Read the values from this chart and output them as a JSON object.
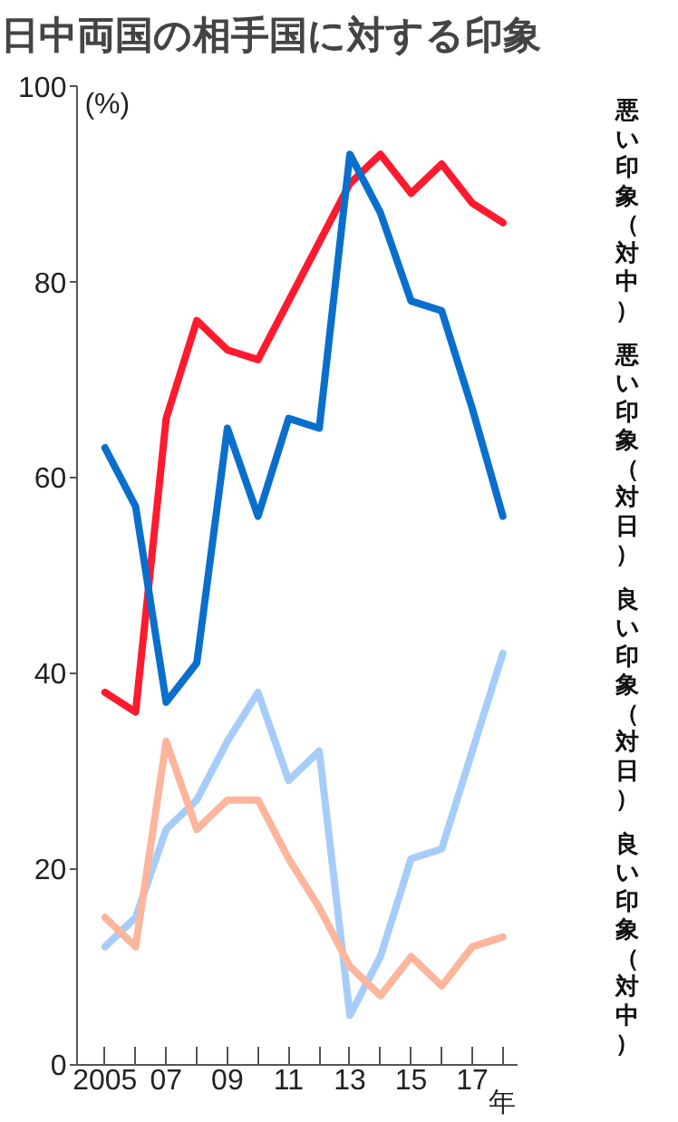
{
  "chart_data": {
    "type": "line",
    "title": "日中両国の相手国に対する印象",
    "ylabel": "(%)",
    "xlabel": "年",
    "x": [
      2005,
      2006,
      2007,
      2008,
      2009,
      2010,
      2011,
      2012,
      2013,
      2014,
      2015,
      2016,
      2017,
      2018
    ],
    "series": [
      {
        "name": "悪い印象（対中）",
        "color": "#ff1a2e",
        "values": [
          38,
          36,
          66,
          76,
          73,
          72,
          78,
          84,
          90,
          93,
          89,
          92,
          88,
          86
        ]
      },
      {
        "name": "悪い印象（対日）",
        "color": "#0a6fcc",
        "values": [
          63,
          57,
          37,
          41,
          65,
          56,
          66,
          65,
          93,
          87,
          78,
          77,
          67,
          56
        ]
      },
      {
        "name": "良い印象（対日）",
        "color": "#a6cdfa",
        "values": [
          12,
          15,
          24,
          27,
          33,
          38,
          29,
          32,
          5,
          11,
          21,
          22,
          32,
          42
        ]
      },
      {
        "name": "良い印象（対中）",
        "color": "#fdb59c",
        "values": [
          15,
          12,
          33,
          24,
          27,
          27,
          21,
          16,
          10,
          7,
          11,
          8,
          12,
          13
        ]
      }
    ],
    "xlim": [
      2004.1,
      2018.45
    ],
    "ylim": [
      0,
      100
    ],
    "xticks": [
      2005,
      {
        "value": 2006,
        "label": null
      },
      {
        "value": 2007,
        "label": "07"
      },
      {
        "value": 2008,
        "label": null
      },
      {
        "value": 2009,
        "label": "09"
      },
      {
        "value": 2010,
        "label": null
      },
      {
        "value": 2011,
        "label": "11"
      },
      {
        "value": 2012,
        "label": null
      },
      {
        "value": 2013,
        "label": "13"
      },
      {
        "value": 2014,
        "label": null
      },
      {
        "value": 2015,
        "label": "15"
      },
      {
        "value": 2016,
        "label": null
      },
      {
        "value": 2017,
        "label": "17"
      },
      {
        "value": 2018,
        "label": null
      }
    ],
    "yticks": [
      0,
      20,
      40,
      60,
      80,
      100
    ],
    "grid": false,
    "marker": "none",
    "line_style": "solid"
  }
}
